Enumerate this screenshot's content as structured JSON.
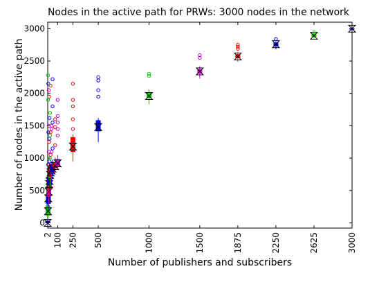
{
  "chart_data": {
    "type": "box",
    "title": "Nodes in the active path for PRWs: 3000 nodes in the network",
    "xlabel": "Number of publishers and subscribers",
    "ylabel": "Number of nodes in the active path",
    "xlim": [
      2,
      3000
    ],
    "ylim": [
      -80,
      3100
    ],
    "x_ticks": [
      2,
      100,
      250,
      500,
      1000,
      1500,
      1875,
      2250,
      2625,
      3000
    ],
    "x_tick_labels": [
      "2",
      "100",
      "250",
      "500",
      "1000",
      "1500",
      "1875",
      "2250",
      "2625",
      "3000"
    ],
    "y_ticks": [
      0,
      500,
      1000,
      1500,
      2000,
      2500,
      3000
    ],
    "y_tick_labels": [
      "0",
      "500",
      "1000",
      "1500",
      "2000",
      "2500",
      "3000"
    ],
    "grid": false,
    "legend": "none",
    "series_colors": [
      "#ff0000",
      "#00cc00",
      "#0000ff",
      "#cc00cc"
    ],
    "boxes": [
      {
        "x": 2,
        "min": 0,
        "q1": 0,
        "median": 0,
        "q3": 30,
        "max": 80,
        "color": "#0000ff",
        "outliers": [
          150,
          260,
          380,
          540
        ]
      },
      {
        "x": 5,
        "min": 50,
        "q1": 120,
        "median": 180,
        "q3": 250,
        "max": 330,
        "color": "#00cc00",
        "outliers": [
          420,
          600,
          900,
          1900,
          2280
        ]
      },
      {
        "x": 8,
        "min": 180,
        "q1": 300,
        "median": 380,
        "q3": 440,
        "max": 560,
        "color": "#0000ff",
        "outliers": [
          650,
          900,
          1400,
          2150
        ]
      },
      {
        "x": 12,
        "min": 300,
        "q1": 410,
        "median": 480,
        "q3": 560,
        "max": 640,
        "color": "#cc00cc",
        "outliers": [
          800,
          1100,
          1500,
          2050
        ]
      },
      {
        "x": 16,
        "min": 400,
        "q1": 530,
        "median": 600,
        "q3": 680,
        "max": 760,
        "color": "#ff0000",
        "outliers": [
          900,
          1250,
          1950
        ]
      },
      {
        "x": 20,
        "min": 470,
        "q1": 590,
        "median": 650,
        "q3": 720,
        "max": 800,
        "color": "#0000ff",
        "outliers": [
          950,
          1300,
          1620
        ]
      },
      {
        "x": 25,
        "min": 560,
        "q1": 680,
        "median": 740,
        "q3": 800,
        "max": 880,
        "color": "#00cc00",
        "outliers": [
          1000,
          1350,
          1700
        ]
      },
      {
        "x": 30,
        "min": 620,
        "q1": 730,
        "median": 780,
        "q3": 840,
        "max": 920,
        "color": "#ff0000",
        "outliers": [
          1050,
          1400,
          2120
        ]
      },
      {
        "x": 40,
        "min": 680,
        "q1": 770,
        "median": 810,
        "q3": 870,
        "max": 950,
        "color": "#cc00cc",
        "outliers": [
          1100,
          1450,
          1500
        ]
      },
      {
        "x": 50,
        "min": 720,
        "q1": 800,
        "median": 840,
        "q3": 900,
        "max": 980,
        "color": "#0000ff",
        "outliers": [
          1150,
          1550,
          1800,
          2220
        ]
      },
      {
        "x": 75,
        "min": 780,
        "q1": 850,
        "median": 880,
        "q3": 930,
        "max": 1010,
        "color": "#ff0000",
        "outliers": [
          1200,
          1480,
          1600
        ]
      },
      {
        "x": 100,
        "min": 820,
        "q1": 880,
        "median": 920,
        "q3": 980,
        "max": 1050,
        "color": "#cc00cc",
        "outliers": [
          1350,
          1450,
          1550,
          1650,
          1900
        ]
      },
      {
        "x": 250,
        "min": 950,
        "q1": 1100,
        "median": 1180,
        "q3": 1320,
        "max": 1370,
        "color": "#ff0000",
        "outliers": [
          1450,
          1600,
          1800,
          1900,
          2150
        ]
      },
      {
        "x": 500,
        "min": 1250,
        "q1": 1420,
        "median": 1480,
        "q3": 1580,
        "max": 1620,
        "color": "#0000ff",
        "outliers": [
          1950,
          2050,
          2200,
          2250
        ]
      },
      {
        "x": 1000,
        "min": 1830,
        "q1": 1930,
        "median": 1960,
        "q3": 2010,
        "max": 2060,
        "color": "#00cc00",
        "outliers": [
          2270,
          2300
        ]
      },
      {
        "x": 1500,
        "min": 2230,
        "q1": 2310,
        "median": 2340,
        "q3": 2370,
        "max": 2420,
        "color": "#cc00cc",
        "outliers": [
          2550,
          2590
        ]
      },
      {
        "x": 1875,
        "min": 2490,
        "q1": 2550,
        "median": 2570,
        "q3": 2600,
        "max": 2640,
        "color": "#ff0000",
        "outliers": [
          2690,
          2720,
          2750
        ]
      },
      {
        "x": 2250,
        "min": 2680,
        "q1": 2730,
        "median": 2760,
        "q3": 2780,
        "max": 2800,
        "color": "#0000ff",
        "outliers": [
          2840
        ]
      },
      {
        "x": 2625,
        "min": 2850,
        "q1": 2880,
        "median": 2890,
        "q3": 2910,
        "max": 2930,
        "color": "#00cc00",
        "outliers": [
          2945
        ]
      },
      {
        "x": 3000,
        "min": 2995,
        "q1": 2998,
        "median": 3000,
        "q3": 3000,
        "max": 3000,
        "color": "#0000ff",
        "outliers": []
      }
    ]
  }
}
